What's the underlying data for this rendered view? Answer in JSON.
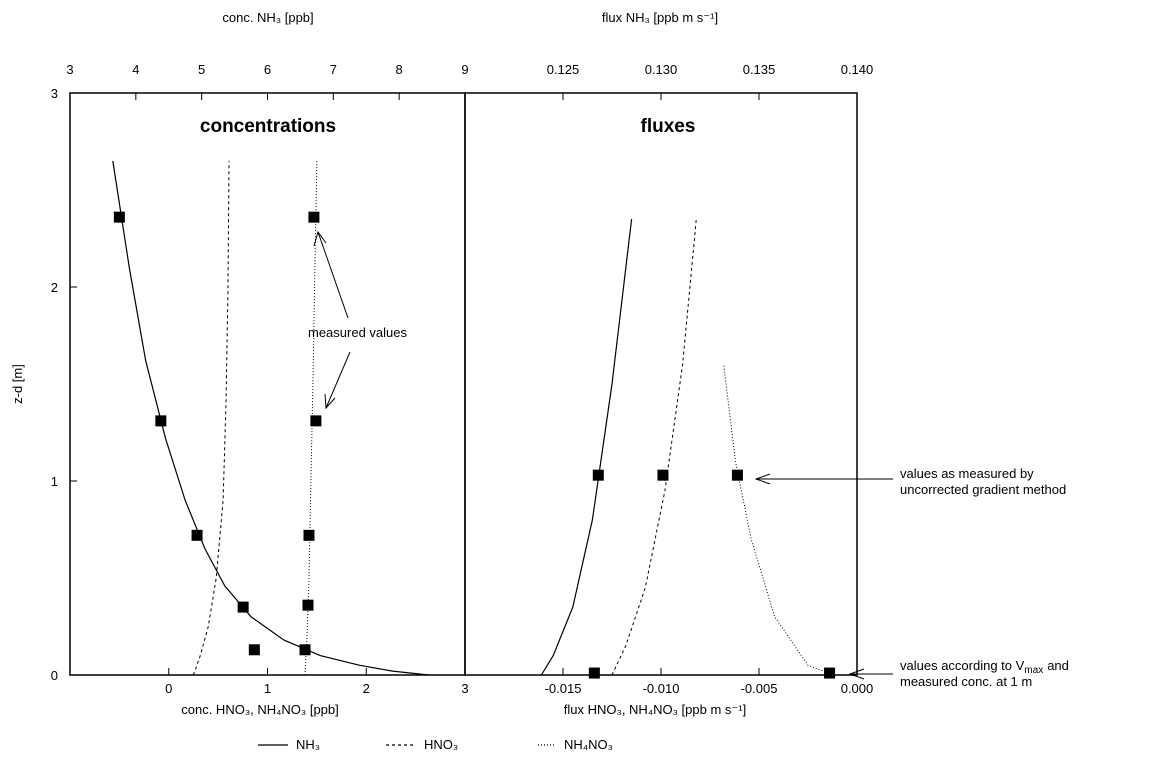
{
  "chart_data": [
    {
      "type": "line",
      "title": "concentrations",
      "xlabel": "conc. HNO₃, NH₄NO₃ [ppb]",
      "x2label": "conc. NH₃ [ppb]",
      "ylabel": "z-d [m]",
      "xlim": [
        -1,
        3
      ],
      "x2lim": [
        3,
        9
      ],
      "ylim": [
        0,
        3
      ],
      "xticks": [
        "0",
        "1",
        "2",
        "3"
      ],
      "x2ticks": [
        "3",
        "4",
        "5",
        "6",
        "7",
        "8",
        "9"
      ],
      "yticks": [
        "0",
        "1",
        "2",
        "3"
      ],
      "series": [
        {
          "name": "NH₃",
          "axis": "top",
          "style": "solid",
          "curve": {
            "x": [
              3.65,
              3.9,
              4.15,
              4.45,
              4.75,
              5.05,
              5.35,
              5.75,
              6.25,
              6.8,
              7.4,
              7.9,
              8.45
            ],
            "y": [
              2.65,
              2.1,
              1.62,
              1.22,
              0.9,
              0.65,
              0.46,
              0.3,
              0.18,
              0.1,
              0.05,
              0.02,
              0.0
            ]
          },
          "points": {
            "x": [
              3.75,
              4.38,
              4.93,
              5.63,
              5.8
            ],
            "y": [
              2.36,
              1.31,
              0.72,
              0.35,
              0.13
            ]
          }
        },
        {
          "name": "HNO₃",
          "axis": "bottom",
          "style": "dashed",
          "curve": {
            "x": [
              0.25,
              0.32,
              0.4,
              0.48,
              0.55,
              0.58,
              0.6,
              0.61
            ],
            "y": [
              0.0,
              0.1,
              0.25,
              0.5,
              0.9,
              1.4,
              2.0,
              2.65
            ]
          }
        },
        {
          "name": "NH₄NO₃",
          "axis": "bottom",
          "style": "dotted",
          "curve": {
            "x": [
              1.38,
              1.4,
              1.42,
              1.44,
              1.46,
              1.48,
              1.5
            ],
            "y": [
              0.0,
              0.2,
              0.5,
              1.0,
              1.5,
              2.1,
              2.65
            ]
          },
          "points": {
            "x": [
              1.47,
              1.49,
              1.42,
              1.41,
              1.38
            ],
            "y": [
              2.36,
              1.31,
              0.72,
              0.36,
              0.13
            ]
          }
        }
      ],
      "annotations": [
        "measured values"
      ]
    },
    {
      "type": "line",
      "title": "fluxes",
      "xlabel": "flux HNO₃, NH₄NO₃ [ppb m s⁻¹]",
      "x2label": "flux NH₃ [ppb m s⁻¹]",
      "xlim": [
        -0.02,
        0.0
      ],
      "x2lim": [
        0.12,
        0.14
      ],
      "ylim": [
        0,
        3
      ],
      "xticks": [
        "-0.015",
        "-0.010",
        "-0.005",
        "0.000"
      ],
      "x2ticks": [
        "0.125",
        "0.130",
        "0.135",
        "0.140"
      ],
      "series": [
        {
          "name": "NH₃",
          "axis": "top",
          "style": "solid",
          "curve": {
            "x": [
              0.1239,
              0.1245,
              0.1255,
              0.1265,
              0.1275,
              0.1285
            ],
            "y": [
              0.0,
              0.1,
              0.35,
              0.8,
              1.5,
              2.35
            ]
          },
          "points": {
            "x": [
              0.1268
            ],
            "y": [
              1.03
            ]
          }
        },
        {
          "name": "HNO₃",
          "axis": "bottom",
          "style": "dashed",
          "curve": {
            "x": [
              -0.0125,
              -0.0118,
              -0.0108,
              -0.0098,
              -0.0089,
              -0.0082
            ],
            "y": [
              0.0,
              0.15,
              0.45,
              0.95,
              1.6,
              2.35
            ]
          },
          "points": {
            "x": [
              -0.0134,
              -0.0099
            ],
            "y": [
              0.01,
              1.03
            ]
          }
        },
        {
          "name": "NH₄NO₃",
          "axis": "bottom",
          "style": "dotted",
          "curve": {
            "x": [
              -0.0012,
              -0.0025,
              -0.0042,
              -0.0054,
              -0.0062,
              -0.0068
            ],
            "y": [
              0.0,
              0.05,
              0.3,
              0.7,
              1.1,
              1.6
            ]
          },
          "points": {
            "x": [
              -0.0014,
              -0.0061
            ],
            "y": [
              0.01,
              1.03
            ]
          }
        }
      ],
      "annotations": [
        "values as measured by",
        "uncorrected gradient method",
        "values according to V",
        "max",
        "and",
        "measured conc. at 1 m"
      ]
    }
  ],
  "legend": {
    "placement": "bottom",
    "entries": [
      "NH₃",
      "HNO₃",
      "NH₄NO₃"
    ]
  }
}
